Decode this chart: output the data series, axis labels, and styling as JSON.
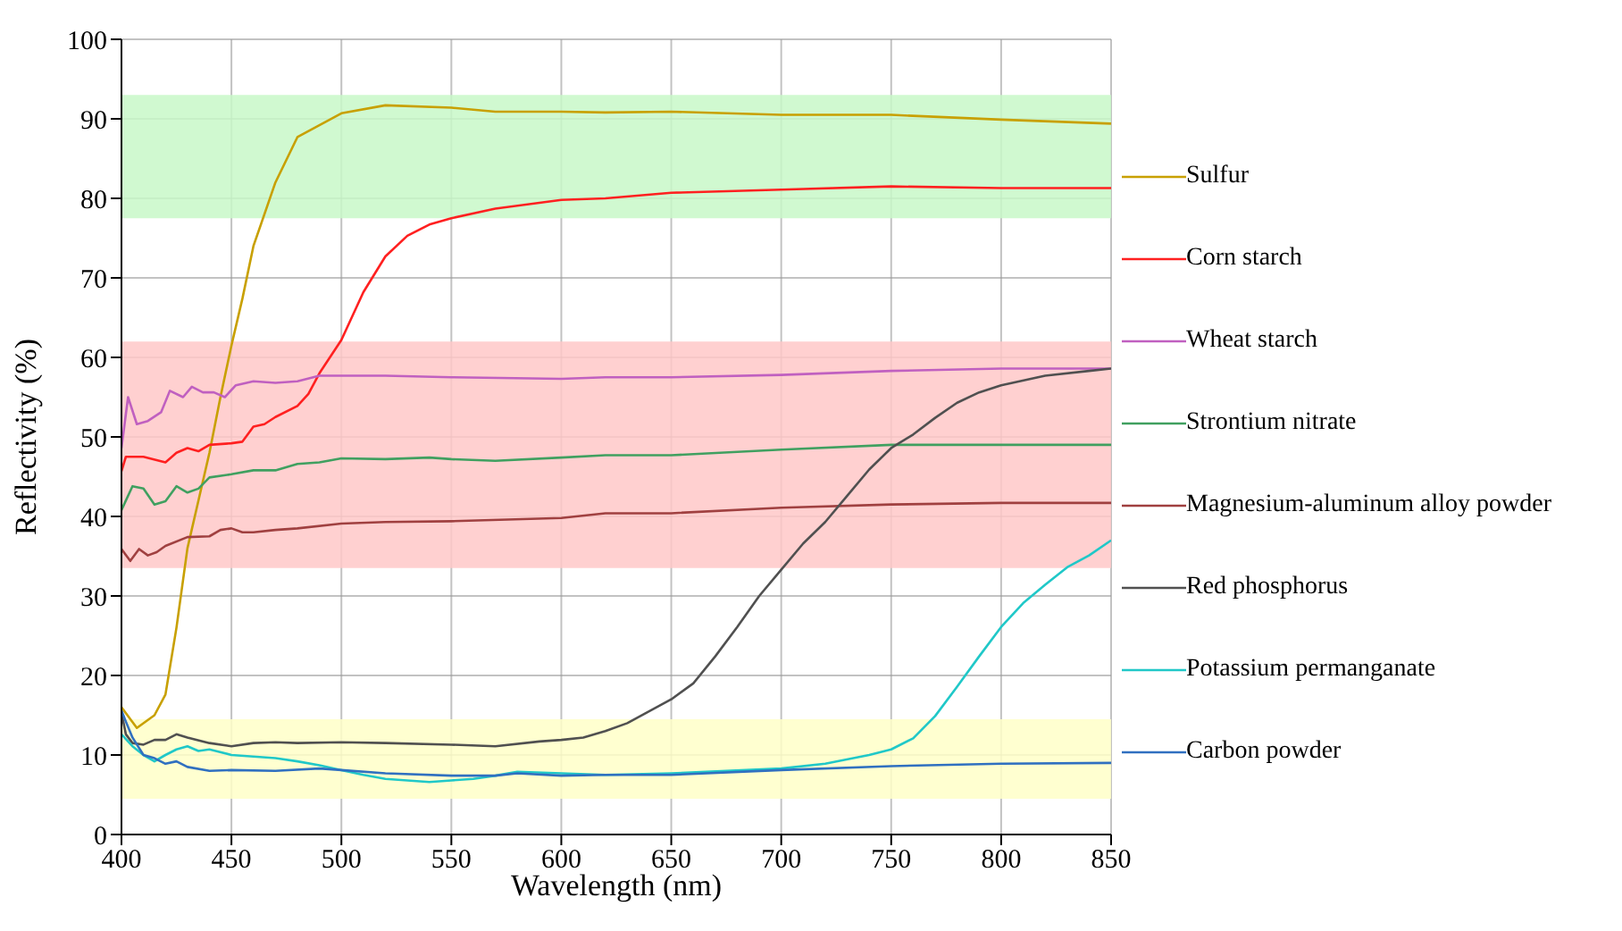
{
  "chart_data": {
    "type": "line",
    "xlabel": "Wavelength (nm)",
    "ylabel": "Reflectivity (%)",
    "xlim": [
      400,
      850
    ],
    "xticks": [
      400,
      450,
      500,
      550,
      600,
      650,
      700,
      750,
      800,
      850
    ],
    "ylim": [
      0,
      100
    ],
    "yticks": [
      0,
      10,
      20,
      30,
      40,
      50,
      60,
      70,
      80,
      90,
      100
    ],
    "grid": true,
    "legend": "right",
    "line_style": "solid",
    "marker": "none",
    "bands": [
      {
        "axis": "y",
        "from": 77.5,
        "to": 93,
        "color": "#c8f8c8"
      },
      {
        "axis": "y",
        "from": 33.5,
        "to": 62,
        "color": "#ffc8c8"
      },
      {
        "axis": "y",
        "from": 4.5,
        "to": 14.5,
        "color": "#ffffc8"
      }
    ],
    "series": [
      {
        "name": "Sulfur",
        "color": "#c8a000",
        "x": [
          400,
          407,
          415,
          420,
          425,
          430,
          435,
          440,
          445,
          450,
          455,
          460,
          470,
          480,
          490,
          500,
          520,
          550,
          570,
          600,
          620,
          650,
          700,
          750,
          800,
          850
        ],
        "values": [
          16,
          13.4,
          15,
          17.6,
          26,
          36,
          42,
          48,
          55,
          61.5,
          67.4,
          74,
          82,
          87.7,
          89.2,
          90.7,
          91.7,
          91.4,
          90.9,
          90.9,
          90.8,
          90.9,
          90.5,
          90.5,
          89.9,
          89.4
        ]
      },
      {
        "name": "Corn starch",
        "color": "#ff2020",
        "x": [
          400,
          402,
          410,
          420,
          425,
          430,
          435,
          440,
          450,
          455,
          460,
          465,
          470,
          480,
          485,
          490,
          500,
          510,
          520,
          530,
          540,
          550,
          570,
          600,
          620,
          650,
          700,
          750,
          800,
          850
        ],
        "values": [
          45.7,
          47.5,
          47.5,
          46.8,
          48,
          48.6,
          48.2,
          49,
          49.2,
          49.4,
          51.3,
          51.6,
          52.5,
          53.9,
          55.4,
          58,
          62.2,
          68.2,
          72.7,
          75.3,
          76.7,
          77.5,
          78.7,
          79.8,
          80,
          80.7,
          81.1,
          81.5,
          81.3,
          81.3
        ]
      },
      {
        "name": "Wheat starch",
        "color": "#c060c0",
        "x": [
          400,
          403,
          407,
          412,
          418,
          422,
          428,
          432,
          437,
          442,
          447,
          452,
          460,
          470,
          480,
          490,
          500,
          520,
          550,
          600,
          620,
          650,
          700,
          750,
          800,
          850
        ],
        "values": [
          48.6,
          55,
          51.6,
          52,
          53.1,
          55.8,
          55,
          56.3,
          55.6,
          55.6,
          55,
          56.5,
          57,
          56.8,
          57,
          57.7,
          57.7,
          57.7,
          57.5,
          57.3,
          57.5,
          57.5,
          57.8,
          58.3,
          58.6,
          58.6
        ]
      },
      {
        "name": "Strontium nitrate",
        "color": "#40a060",
        "x": [
          400,
          405,
          410,
          415,
          420,
          425,
          430,
          435,
          440,
          450,
          460,
          470,
          480,
          490,
          500,
          520,
          540,
          550,
          570,
          600,
          620,
          650,
          700,
          750,
          800,
          850
        ],
        "values": [
          40.8,
          43.8,
          43.5,
          41.5,
          41.9,
          43.8,
          43,
          43.5,
          44.9,
          45.3,
          45.8,
          45.8,
          46.6,
          46.8,
          47.3,
          47.2,
          47.4,
          47.2,
          47,
          47.4,
          47.7,
          47.7,
          48.4,
          49,
          49,
          49
        ]
      },
      {
        "name": "Magnesium-aluminum alloy powder",
        "color": "#a04040",
        "x": [
          400,
          404,
          408,
          412,
          416,
          420,
          430,
          440,
          445,
          450,
          455,
          460,
          470,
          480,
          500,
          520,
          550,
          600,
          620,
          650,
          700,
          750,
          800,
          850
        ],
        "values": [
          35.9,
          34.4,
          35.9,
          35.1,
          35.5,
          36.3,
          37.4,
          37.5,
          38.3,
          38.5,
          38,
          38,
          38.3,
          38.5,
          39.1,
          39.3,
          39.4,
          39.8,
          40.4,
          40.4,
          41.1,
          41.5,
          41.7,
          41.7
        ]
      },
      {
        "name": "Red phosphorus",
        "color": "#505050",
        "x": [
          400,
          402,
          405,
          410,
          415,
          420,
          425,
          430,
          440,
          450,
          460,
          470,
          480,
          500,
          520,
          550,
          570,
          590,
          600,
          610,
          620,
          630,
          650,
          660,
          670,
          680,
          690,
          700,
          710,
          720,
          730,
          740,
          750,
          760,
          770,
          780,
          790,
          800,
          820,
          840,
          850
        ],
        "values": [
          15.3,
          12.6,
          11.5,
          11.3,
          11.9,
          11.9,
          12.6,
          12.2,
          11.5,
          11.1,
          11.5,
          11.6,
          11.5,
          11.6,
          11.5,
          11.3,
          11.1,
          11.7,
          11.9,
          12.2,
          13,
          14,
          17,
          19,
          22.4,
          26.1,
          30,
          33.3,
          36.6,
          39.3,
          42.6,
          45.9,
          48.6,
          50.3,
          52.4,
          54.3,
          55.6,
          56.5,
          57.7,
          58.3,
          58.6
        ]
      },
      {
        "name": "Potassium permanganate",
        "color": "#20c8c8",
        "x": [
          400,
          405,
          410,
          415,
          420,
          425,
          430,
          435,
          440,
          450,
          460,
          470,
          480,
          490,
          500,
          510,
          520,
          530,
          540,
          550,
          560,
          570,
          580,
          600,
          620,
          650,
          700,
          720,
          740,
          750,
          760,
          770,
          780,
          790,
          800,
          810,
          820,
          830,
          840,
          850
        ],
        "values": [
          12.6,
          11.1,
          10,
          9.2,
          10,
          10.7,
          11.1,
          10.5,
          10.7,
          10,
          9.8,
          9.6,
          9.2,
          8.7,
          8.1,
          7.5,
          7,
          6.8,
          6.6,
          6.8,
          7,
          7.4,
          7.9,
          7.7,
          7.5,
          7.7,
          8.3,
          8.9,
          10,
          10.7,
          12.1,
          14.9,
          18.6,
          22.4,
          26.1,
          29.1,
          31.4,
          33.6,
          35.1,
          37
        ]
      },
      {
        "name": "Carbon powder",
        "color": "#3070c0",
        "x": [
          400,
          402,
          405,
          410,
          415,
          420,
          425,
          430,
          440,
          450,
          470,
          490,
          500,
          520,
          550,
          570,
          580,
          600,
          620,
          650,
          700,
          750,
          800,
          850
        ],
        "values": [
          15.6,
          14.2,
          12.2,
          10,
          9.6,
          8.9,
          9.2,
          8.5,
          8,
          8.1,
          8,
          8.3,
          8.1,
          7.7,
          7.4,
          7.4,
          7.7,
          7.4,
          7.5,
          7.5,
          8.1,
          8.6,
          8.9,
          9
        ]
      }
    ]
  }
}
